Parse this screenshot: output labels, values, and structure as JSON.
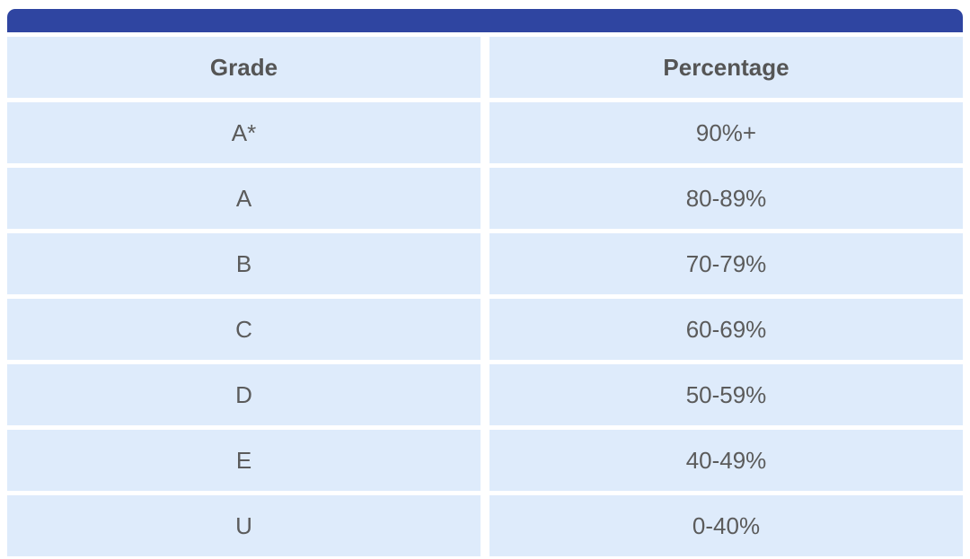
{
  "table": {
    "accent_color": "#2f45a1",
    "cell_color": "#deebfb",
    "headers": [
      "Grade",
      "Percentage"
    ],
    "rows": [
      {
        "grade": "A*",
        "percentage": "90%+"
      },
      {
        "grade": "A",
        "percentage": "80-89%"
      },
      {
        "grade": "B",
        "percentage": "70-79%"
      },
      {
        "grade": "C",
        "percentage": "60-69%"
      },
      {
        "grade": "D",
        "percentage": "50-59%"
      },
      {
        "grade": "E",
        "percentage": "40-49%"
      },
      {
        "grade": "U",
        "percentage": "0-40%"
      }
    ]
  }
}
